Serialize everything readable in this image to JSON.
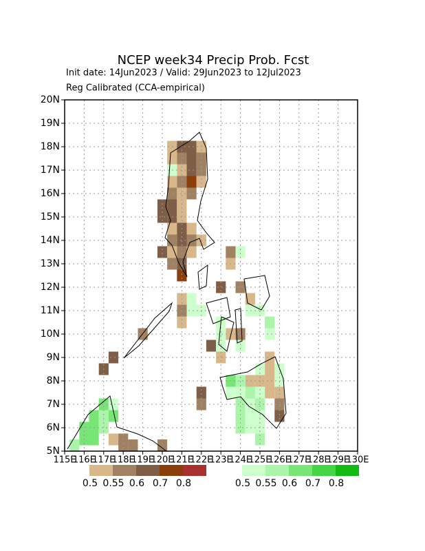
{
  "chart_data": {
    "type": "grid-map",
    "title": "NCEP week34 Precip Prob. Fcst",
    "subtitle": "Init date: 14Jun2023 / Valid: 29Jun2023 to 12Jul2023",
    "annotation": "Reg Calibrated (CCA-empirical)",
    "xlim": [
      115,
      130
    ],
    "ylim": [
      5,
      20
    ],
    "xticks": [
      {
        "value": 115,
        "label": "115E"
      },
      {
        "value": 116,
        "label": "116E"
      },
      {
        "value": 117,
        "label": "117E"
      },
      {
        "value": 118,
        "label": "118E"
      },
      {
        "value": 119,
        "label": "119E"
      },
      {
        "value": 120,
        "label": "120E"
      },
      {
        "value": 121,
        "label": "121E"
      },
      {
        "value": 122,
        "label": "122E"
      },
      {
        "value": 123,
        "label": "123E"
      },
      {
        "value": 124,
        "label": "124E"
      },
      {
        "value": 125,
        "label": "125E"
      },
      {
        "value": 126,
        "label": "126E"
      },
      {
        "value": 127,
        "label": "127E"
      },
      {
        "value": 128,
        "label": "128E"
      },
      {
        "value": 129,
        "label": "129E"
      },
      {
        "value": 130,
        "label": "130E"
      }
    ],
    "yticks": [
      {
        "value": 5,
        "label": "5N"
      },
      {
        "value": 6,
        "label": "6N"
      },
      {
        "value": 7,
        "label": "7N"
      },
      {
        "value": 8,
        "label": "8N"
      },
      {
        "value": 9,
        "label": "9N"
      },
      {
        "value": 10,
        "label": "10N"
      },
      {
        "value": 11,
        "label": "11N"
      },
      {
        "value": 12,
        "label": "12N"
      },
      {
        "value": 13,
        "label": "13N"
      },
      {
        "value": 14,
        "label": "14N"
      },
      {
        "value": 15,
        "label": "15N"
      },
      {
        "value": 16,
        "label": "16N"
      },
      {
        "value": 17,
        "label": "17N"
      },
      {
        "value": 18,
        "label": "18N"
      },
      {
        "value": 19,
        "label": "19N"
      },
      {
        "value": 20,
        "label": "20N"
      }
    ],
    "grid": true,
    "cell_size": 0.5,
    "levels": [
      0.5,
      0.55,
      0.6,
      0.7,
      0.8
    ],
    "below_colors": [
      "#d8b88a",
      "#a08262",
      "#7e5e46",
      "#8b3e0a",
      "#a8302e"
    ],
    "above_colors": [
      "#ccffcc",
      "#aaf5aa",
      "#77e677",
      "#44d444",
      "#12bb12"
    ],
    "below": [
      [
        120.5,
        18,
        0.5
      ],
      [
        121,
        18,
        0.6
      ],
      [
        121.5,
        18,
        0.6
      ],
      [
        122,
        18,
        0.5
      ],
      [
        120.5,
        17.5,
        0.5
      ],
      [
        121,
        17.5,
        0.55
      ],
      [
        121.5,
        17.5,
        0.6
      ],
      [
        122,
        17.5,
        0.55
      ],
      [
        121,
        17,
        0.5
      ],
      [
        121.5,
        17,
        0.6
      ],
      [
        122,
        17,
        0.55
      ],
      [
        120.5,
        16.5,
        0.5
      ],
      [
        121,
        16.5,
        0.55
      ],
      [
        121.5,
        16.5,
        0.7
      ],
      [
        122,
        16.5,
        0.5
      ],
      [
        120.5,
        16,
        0.55
      ],
      [
        121,
        16,
        0.5
      ],
      [
        121.5,
        16,
        0.55
      ],
      [
        120,
        15.5,
        0.6
      ],
      [
        120.5,
        15.5,
        0.6
      ],
      [
        121,
        15.5,
        0.5
      ],
      [
        120,
        15,
        0.6
      ],
      [
        120.5,
        15,
        0.6
      ],
      [
        121,
        15,
        0.5
      ],
      [
        121.5,
        14.5,
        0.5
      ],
      [
        120.5,
        14.5,
        0.5
      ],
      [
        121,
        14.5,
        0.6
      ],
      [
        122,
        14,
        0.5
      ],
      [
        120.5,
        14,
        0.55
      ],
      [
        121,
        14,
        0.6
      ],
      [
        121.5,
        14,
        0.55
      ],
      [
        120,
        13.5,
        0.6
      ],
      [
        120.5,
        13.5,
        0.5
      ],
      [
        121,
        13.5,
        0.55
      ],
      [
        121.5,
        13.5,
        0.5
      ],
      [
        123.5,
        13.5,
        0.55
      ],
      [
        120.5,
        13,
        0.55
      ],
      [
        121,
        13,
        0.6
      ],
      [
        123.5,
        13,
        0.5
      ],
      [
        121,
        12.5,
        0.7
      ],
      [
        123,
        12,
        0.6
      ],
      [
        124,
        12,
        0.55
      ],
      [
        121,
        11.5,
        0.5
      ],
      [
        124.5,
        11.5,
        0.5
      ],
      [
        121,
        11,
        0.55
      ],
      [
        121,
        10.5,
        0.5
      ],
      [
        119,
        10,
        0.55
      ],
      [
        123.5,
        10,
        0.5
      ],
      [
        124,
        10,
        0.55
      ],
      [
        122.5,
        9.5,
        0.6
      ],
      [
        117.5,
        9,
        0.6
      ],
      [
        123,
        9,
        0.5
      ],
      [
        125.5,
        9,
        0.5
      ],
      [
        117,
        8.5,
        0.6
      ],
      [
        125.5,
        8.5,
        0.5
      ],
      [
        124.5,
        8,
        0.5
      ],
      [
        125,
        8,
        0.5
      ],
      [
        125.5,
        8,
        0.5
      ],
      [
        122,
        7.5,
        0.6
      ],
      [
        125.5,
        7.5,
        0.5
      ],
      [
        126,
        7.5,
        0.5
      ],
      [
        122,
        7,
        0.55
      ],
      [
        126,
        7,
        0.55
      ],
      [
        126,
        6.5,
        0.6
      ],
      [
        117.5,
        5.5,
        0.5
      ],
      [
        118,
        5.5,
        0.55
      ],
      [
        118,
        5.25,
        0.55
      ],
      [
        118.5,
        5.25,
        0.55
      ],
      [
        120,
        5.25,
        0.55
      ]
    ],
    "above": [
      [
        120.5,
        17,
        0.5
      ],
      [
        124,
        13.5,
        0.5
      ],
      [
        121.5,
        11.5,
        0.5
      ],
      [
        121.5,
        11,
        0.5
      ],
      [
        122,
        11,
        0.5
      ],
      [
        124.5,
        11,
        0.5
      ],
      [
        125,
        11,
        0.5
      ],
      [
        123,
        10.5,
        0.5
      ],
      [
        125.5,
        10.5,
        0.55
      ],
      [
        123,
        10,
        0.5
      ],
      [
        125.5,
        10,
        0.5
      ],
      [
        123,
        9.5,
        0.5
      ],
      [
        124,
        9.5,
        0.5
      ],
      [
        125,
        8.5,
        0.5
      ],
      [
        126,
        8.5,
        0.5
      ],
      [
        123.5,
        8,
        0.6
      ],
      [
        124,
        8,
        0.55
      ],
      [
        126,
        8,
        0.5
      ],
      [
        123.5,
        7.5,
        0.5
      ],
      [
        124,
        7.5,
        0.5
      ],
      [
        124.5,
        7.5,
        0.55
      ],
      [
        125,
        7.5,
        0.5
      ],
      [
        117,
        7,
        0.6
      ],
      [
        117.5,
        7,
        0.5
      ],
      [
        124,
        7,
        0.55
      ],
      [
        124.5,
        7,
        0.5
      ],
      [
        125,
        7,
        0.55
      ],
      [
        116.5,
        6.5,
        0.6
      ],
      [
        117,
        6.5,
        0.55
      ],
      [
        117.5,
        6.5,
        0.6
      ],
      [
        124,
        6.5,
        0.55
      ],
      [
        124.5,
        6.5,
        0.5
      ],
      [
        125,
        6.5,
        0.5
      ],
      [
        116,
        6,
        0.6
      ],
      [
        116.5,
        6,
        0.6
      ],
      [
        117,
        6,
        0.55
      ],
      [
        124,
        6,
        0.55
      ],
      [
        124.5,
        6,
        0.5
      ],
      [
        125,
        6,
        0.5
      ],
      [
        116,
        5.5,
        0.6
      ],
      [
        116.5,
        5.5,
        0.6
      ],
      [
        125,
        5.5,
        0.55
      ],
      [
        115.5,
        5.25,
        0.55
      ]
    ]
  }
}
